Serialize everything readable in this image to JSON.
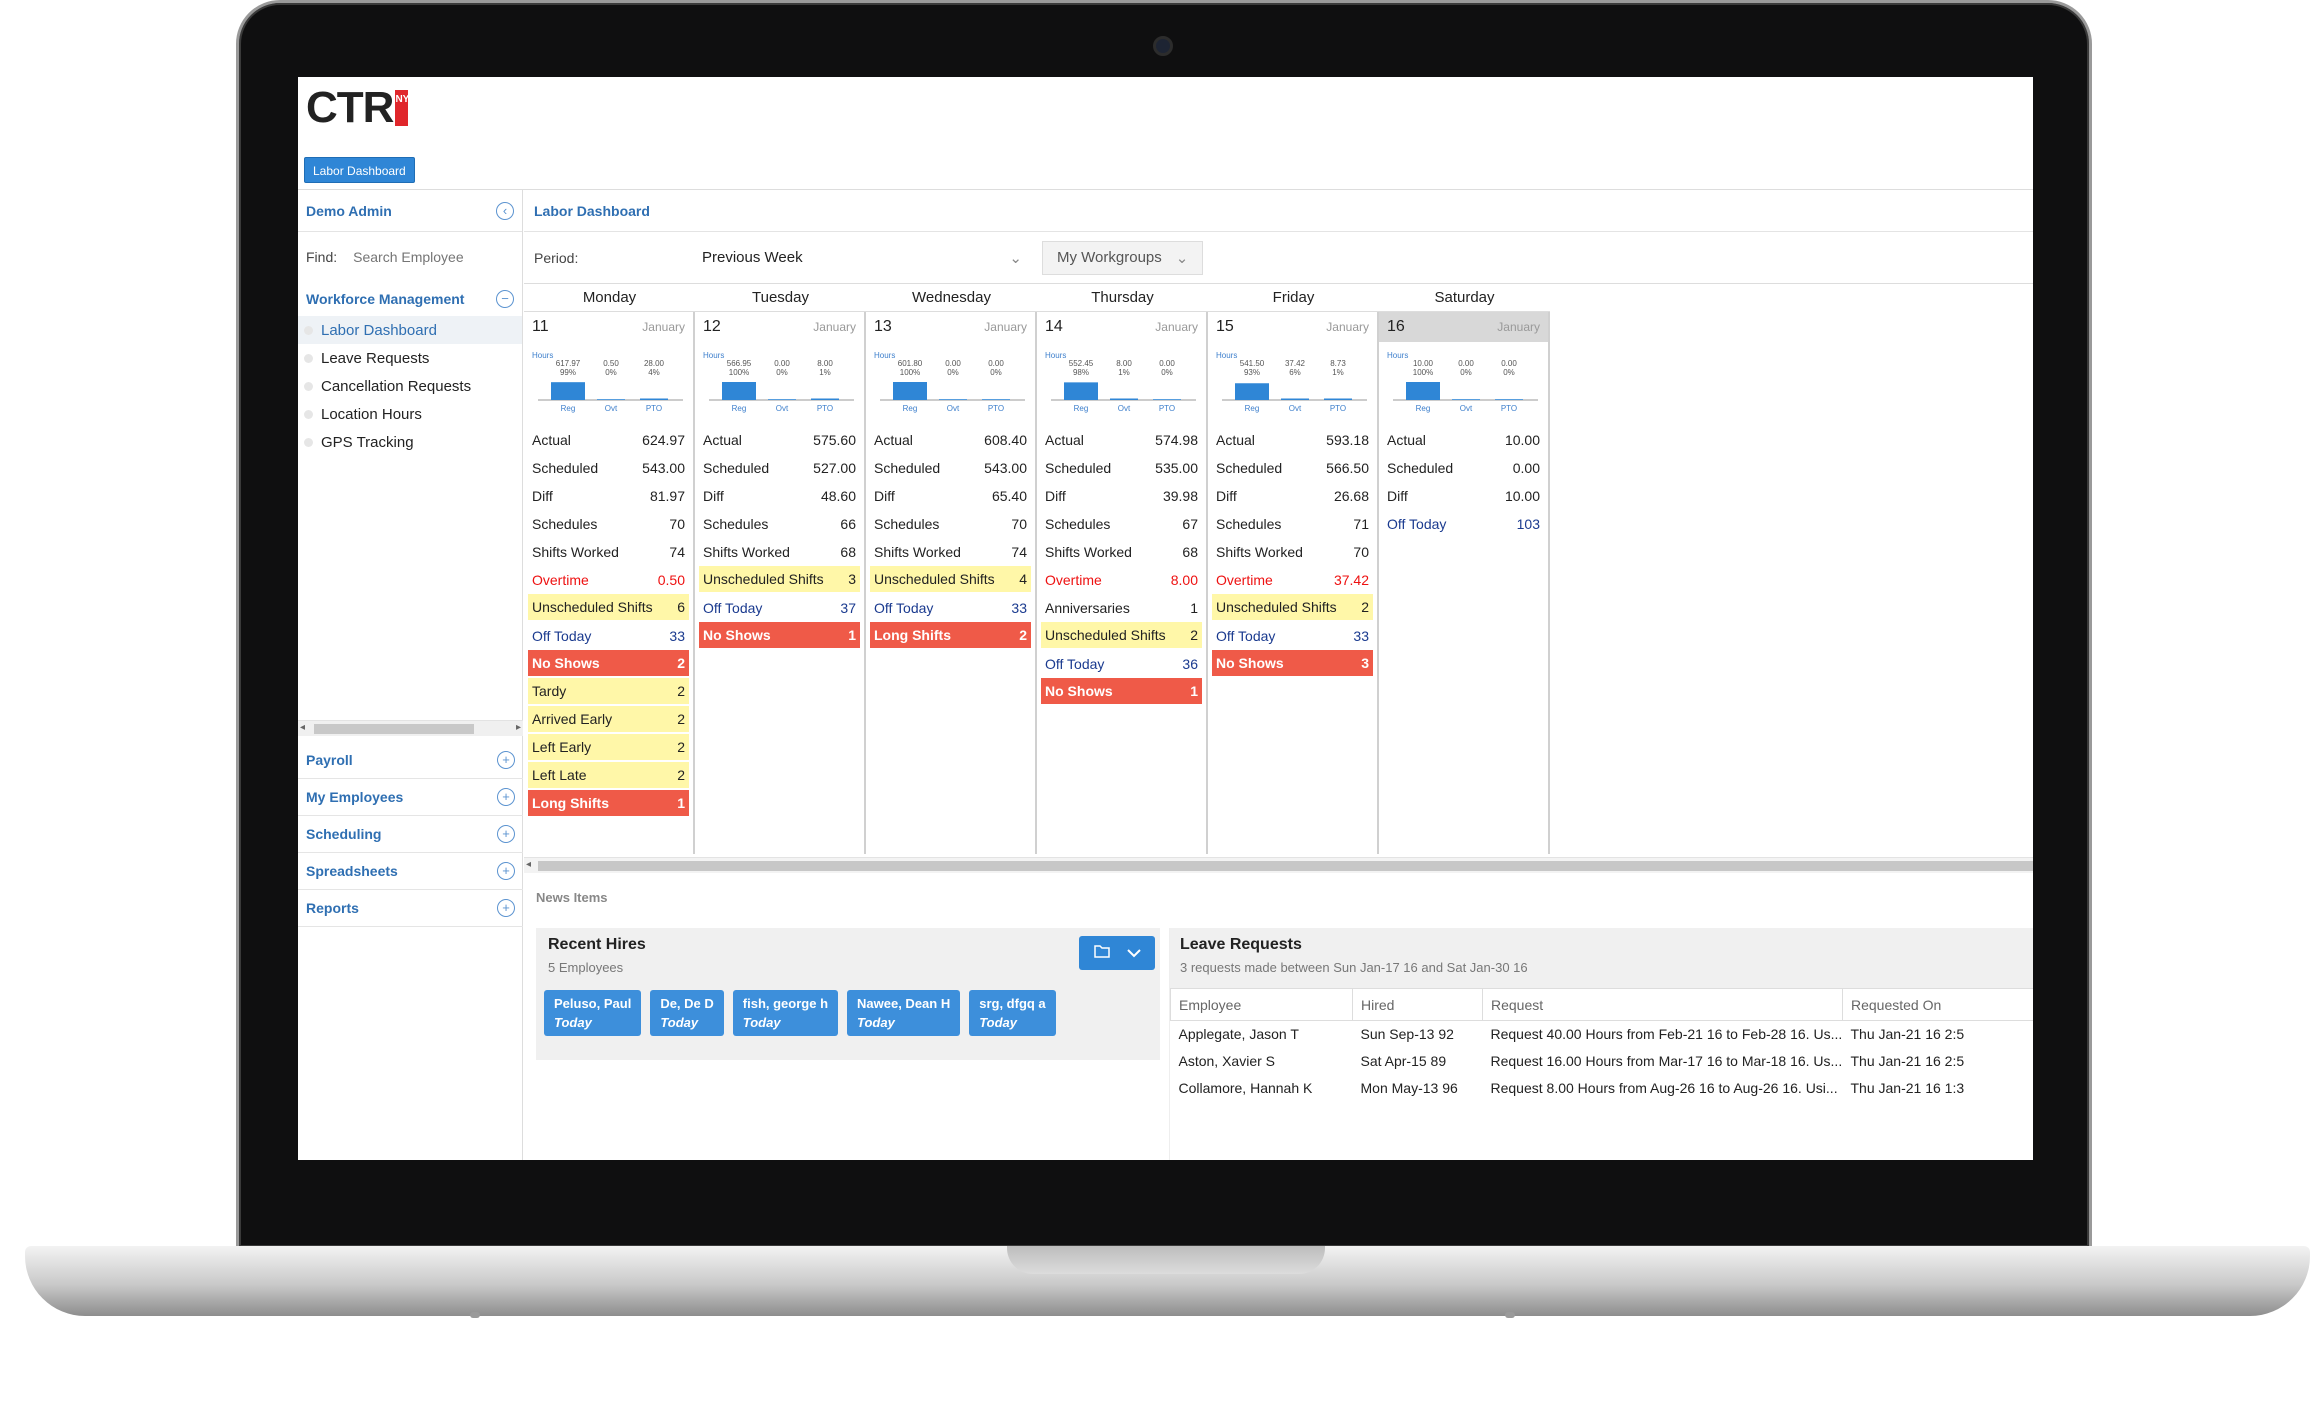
{
  "app": {
    "logo_text": "CTR",
    "logo_badge": "NY",
    "top_button": "Labor Dashboard"
  },
  "sidebar": {
    "user": "Demo Admin",
    "collapse_icon": "chevron-left-circle-icon",
    "find_label": "Find:",
    "find_placeholder": "Search Employee",
    "section": "Workforce Management",
    "items": [
      {
        "label": "Labor Dashboard",
        "active": true
      },
      {
        "label": "Leave Requests"
      },
      {
        "label": "Cancellation Requests"
      },
      {
        "label": "Location Hours"
      },
      {
        "label": "GPS Tracking"
      }
    ],
    "sections": [
      "Payroll",
      "My Employees",
      "Scheduling",
      "Spreadsheets",
      "Reports"
    ]
  },
  "main": {
    "breadcrumb": "Labor Dashboard",
    "period_label": "Period:",
    "period_value": "Previous Week",
    "workgroups": "My Workgroups",
    "news_label": "News Items"
  },
  "chart_labels": {
    "hours": "Hours",
    "reg": "Reg",
    "ovt": "Ovt",
    "pto": "PTO"
  },
  "days": [
    {
      "name": "Monday",
      "num": "11",
      "month": "January",
      "reg": {
        "v": "617.97",
        "p": "99%"
      },
      "ovt": {
        "v": "0.50",
        "p": "0%"
      },
      "pto": {
        "v": "28.00",
        "p": "4%"
      },
      "rows": [
        [
          "Actual",
          "624.97",
          ""
        ],
        [
          "Scheduled",
          "543.00",
          ""
        ],
        [
          "Diff",
          "81.97",
          ""
        ],
        [
          "Schedules",
          "70",
          ""
        ],
        [
          "Shifts Worked",
          "74",
          ""
        ],
        [
          "Overtime",
          "0.50",
          "red"
        ],
        [
          "Unscheduled Shifts",
          "6",
          "yellow"
        ],
        [
          "Off Today",
          "33",
          "blue"
        ],
        [
          "No Shows",
          "2",
          "alert"
        ],
        [
          "Tardy",
          "2",
          "yellow"
        ],
        [
          "Arrived Early",
          "2",
          "yellow"
        ],
        [
          "Left Early",
          "2",
          "yellow"
        ],
        [
          "Left Late",
          "2",
          "yellow"
        ],
        [
          "Long Shifts",
          "1",
          "alert"
        ]
      ]
    },
    {
      "name": "Tuesday",
      "num": "12",
      "month": "January",
      "reg": {
        "v": "566.95",
        "p": "100%"
      },
      "ovt": {
        "v": "0.00",
        "p": "0%"
      },
      "pto": {
        "v": "8.00",
        "p": "1%"
      },
      "rows": [
        [
          "Actual",
          "575.60",
          ""
        ],
        [
          "Scheduled",
          "527.00",
          ""
        ],
        [
          "Diff",
          "48.60",
          ""
        ],
        [
          "Schedules",
          "66",
          ""
        ],
        [
          "Shifts Worked",
          "68",
          ""
        ],
        [
          "Unscheduled Shifts",
          "3",
          "yellow"
        ],
        [
          "Off Today",
          "37",
          "blue"
        ],
        [
          "No Shows",
          "1",
          "alert"
        ]
      ]
    },
    {
      "name": "Wednesday",
      "num": "13",
      "month": "January",
      "reg": {
        "v": "601.80",
        "p": "100%"
      },
      "ovt": {
        "v": "0.00",
        "p": "0%"
      },
      "pto": {
        "v": "0.00",
        "p": "0%"
      },
      "rows": [
        [
          "Actual",
          "608.40",
          ""
        ],
        [
          "Scheduled",
          "543.00",
          ""
        ],
        [
          "Diff",
          "65.40",
          ""
        ],
        [
          "Schedules",
          "70",
          ""
        ],
        [
          "Shifts Worked",
          "74",
          ""
        ],
        [
          "Unscheduled Shifts",
          "4",
          "yellow"
        ],
        [
          "Off Today",
          "33",
          "blue"
        ],
        [
          "Long Shifts",
          "2",
          "alert"
        ]
      ]
    },
    {
      "name": "Thursday",
      "num": "14",
      "month": "January",
      "reg": {
        "v": "552.45",
        "p": "98%"
      },
      "ovt": {
        "v": "8.00",
        "p": "1%"
      },
      "pto": {
        "v": "0.00",
        "p": "0%"
      },
      "rows": [
        [
          "Actual",
          "574.98",
          ""
        ],
        [
          "Scheduled",
          "535.00",
          ""
        ],
        [
          "Diff",
          "39.98",
          ""
        ],
        [
          "Schedules",
          "67",
          ""
        ],
        [
          "Shifts Worked",
          "68",
          ""
        ],
        [
          "Overtime",
          "8.00",
          "red"
        ],
        [
          "Anniversaries",
          "1",
          ""
        ],
        [
          "Unscheduled Shifts",
          "2",
          "yellow"
        ],
        [
          "Off Today",
          "36",
          "blue"
        ],
        [
          "No Shows",
          "1",
          "alert"
        ]
      ]
    },
    {
      "name": "Friday",
      "num": "15",
      "month": "January",
      "reg": {
        "v": "541.50",
        "p": "93%"
      },
      "ovt": {
        "v": "37.42",
        "p": "6%"
      },
      "pto": {
        "v": "8.73",
        "p": "1%"
      },
      "rows": [
        [
          "Actual",
          "593.18",
          ""
        ],
        [
          "Scheduled",
          "566.50",
          ""
        ],
        [
          "Diff",
          "26.68",
          ""
        ],
        [
          "Schedules",
          "71",
          ""
        ],
        [
          "Shifts Worked",
          "70",
          ""
        ],
        [
          "Overtime",
          "37.42",
          "red"
        ],
        [
          "Unscheduled Shifts",
          "2",
          "yellow"
        ],
        [
          "Off Today",
          "33",
          "blue"
        ],
        [
          "No Shows",
          "3",
          "alert"
        ]
      ]
    },
    {
      "name": "Saturday",
      "num": "16",
      "month": "January",
      "reg": {
        "v": "10.00",
        "p": "100%"
      },
      "ovt": {
        "v": "0.00",
        "p": "0%"
      },
      "pto": {
        "v": "0.00",
        "p": "0%"
      },
      "rows": [
        [
          "Actual",
          "10.00",
          ""
        ],
        [
          "Scheduled",
          "0.00",
          ""
        ],
        [
          "Diff",
          "10.00",
          ""
        ],
        [
          "Off Today",
          "103",
          "blue"
        ]
      ]
    }
  ],
  "recent_hires": {
    "title": "Recent Hires",
    "subtitle": "5 Employees",
    "employees": [
      {
        "name": "Peluso, Paul",
        "when": "Today"
      },
      {
        "name": "De, De D",
        "when": "Today"
      },
      {
        "name": "fish, george h",
        "when": "Today"
      },
      {
        "name": "Nawee, Dean H",
        "when": "Today"
      },
      {
        "name": "srg, dfgq a",
        "when": "Today"
      }
    ]
  },
  "leave_requests": {
    "title": "Leave Requests",
    "subtitle": "3 requests made between Sun Jan-17 16 and Sat Jan-30 16",
    "columns": [
      "Employee",
      "Hired",
      "Request",
      "Requested On"
    ],
    "rows": [
      [
        "Applegate, Jason T",
        "Sun Sep-13 92",
        "Request 40.00 Hours from Feb-21 16 to Feb-28 16. Us...",
        "Thu Jan-21 16 2:5"
      ],
      [
        "Aston, Xavier S",
        "Sat Apr-15 89",
        "Request 16.00 Hours from Mar-17 16 to Mar-18 16. Us...",
        "Thu Jan-21 16 2:5"
      ],
      [
        "Collamore, Hannah K",
        "Mon May-13 96",
        "Request 8.00 Hours from Aug-26 16 to Aug-26 16. Usi...",
        "Thu Jan-21 16 1:3"
      ]
    ]
  }
}
